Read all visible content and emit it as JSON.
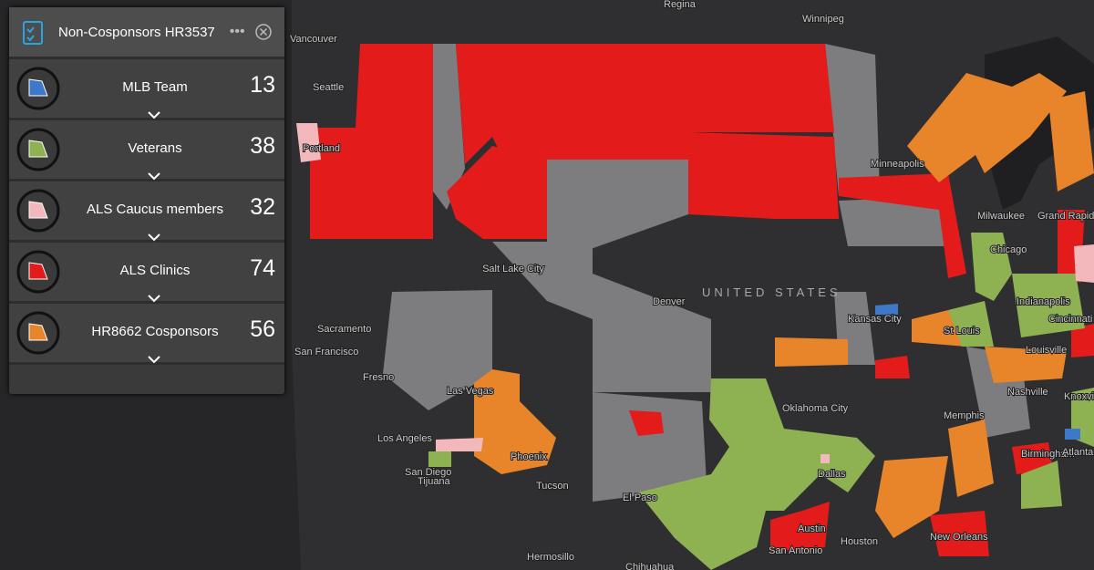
{
  "panel": {
    "title": "Non-Cosponsors HR3537",
    "items": [
      {
        "label": "MLB Team",
        "count": "13"
      },
      {
        "label": "Veterans",
        "count": "38"
      },
      {
        "label": "ALS Caucus members",
        "count": "32"
      },
      {
        "label": "ALS Clinics",
        "count": "74"
      },
      {
        "label": "HR8662 Cosponsors",
        "count": "56"
      }
    ]
  },
  "map": {
    "country_label": "UNITED STATES",
    "places": [
      "Regina",
      "Winnipeg",
      "Vancouver",
      "Seattle",
      "Portland",
      "Minneapolis",
      "Milwaukee",
      "Grand Rapids",
      "Chicago",
      "Salt Lake City",
      "Denver",
      "Kansas City",
      "Sacramento",
      "St Louis",
      "Indianapolis",
      "Cincinnati",
      "San Francisco",
      "Louisville",
      "Fresno",
      "Las Vegas",
      "Nashville",
      "Oklahoma City",
      "Memphis",
      "Knoxville",
      "Los Angeles",
      "Phoenix",
      "Birmingham",
      "Atlanta",
      "San Diego",
      "Tijuana",
      "Dallas",
      "Tucson",
      "El Paso",
      "Austin",
      "San Antonio",
      "Houston",
      "New Orleans",
      "Hermosillo",
      "Chihuahua"
    ]
  }
}
